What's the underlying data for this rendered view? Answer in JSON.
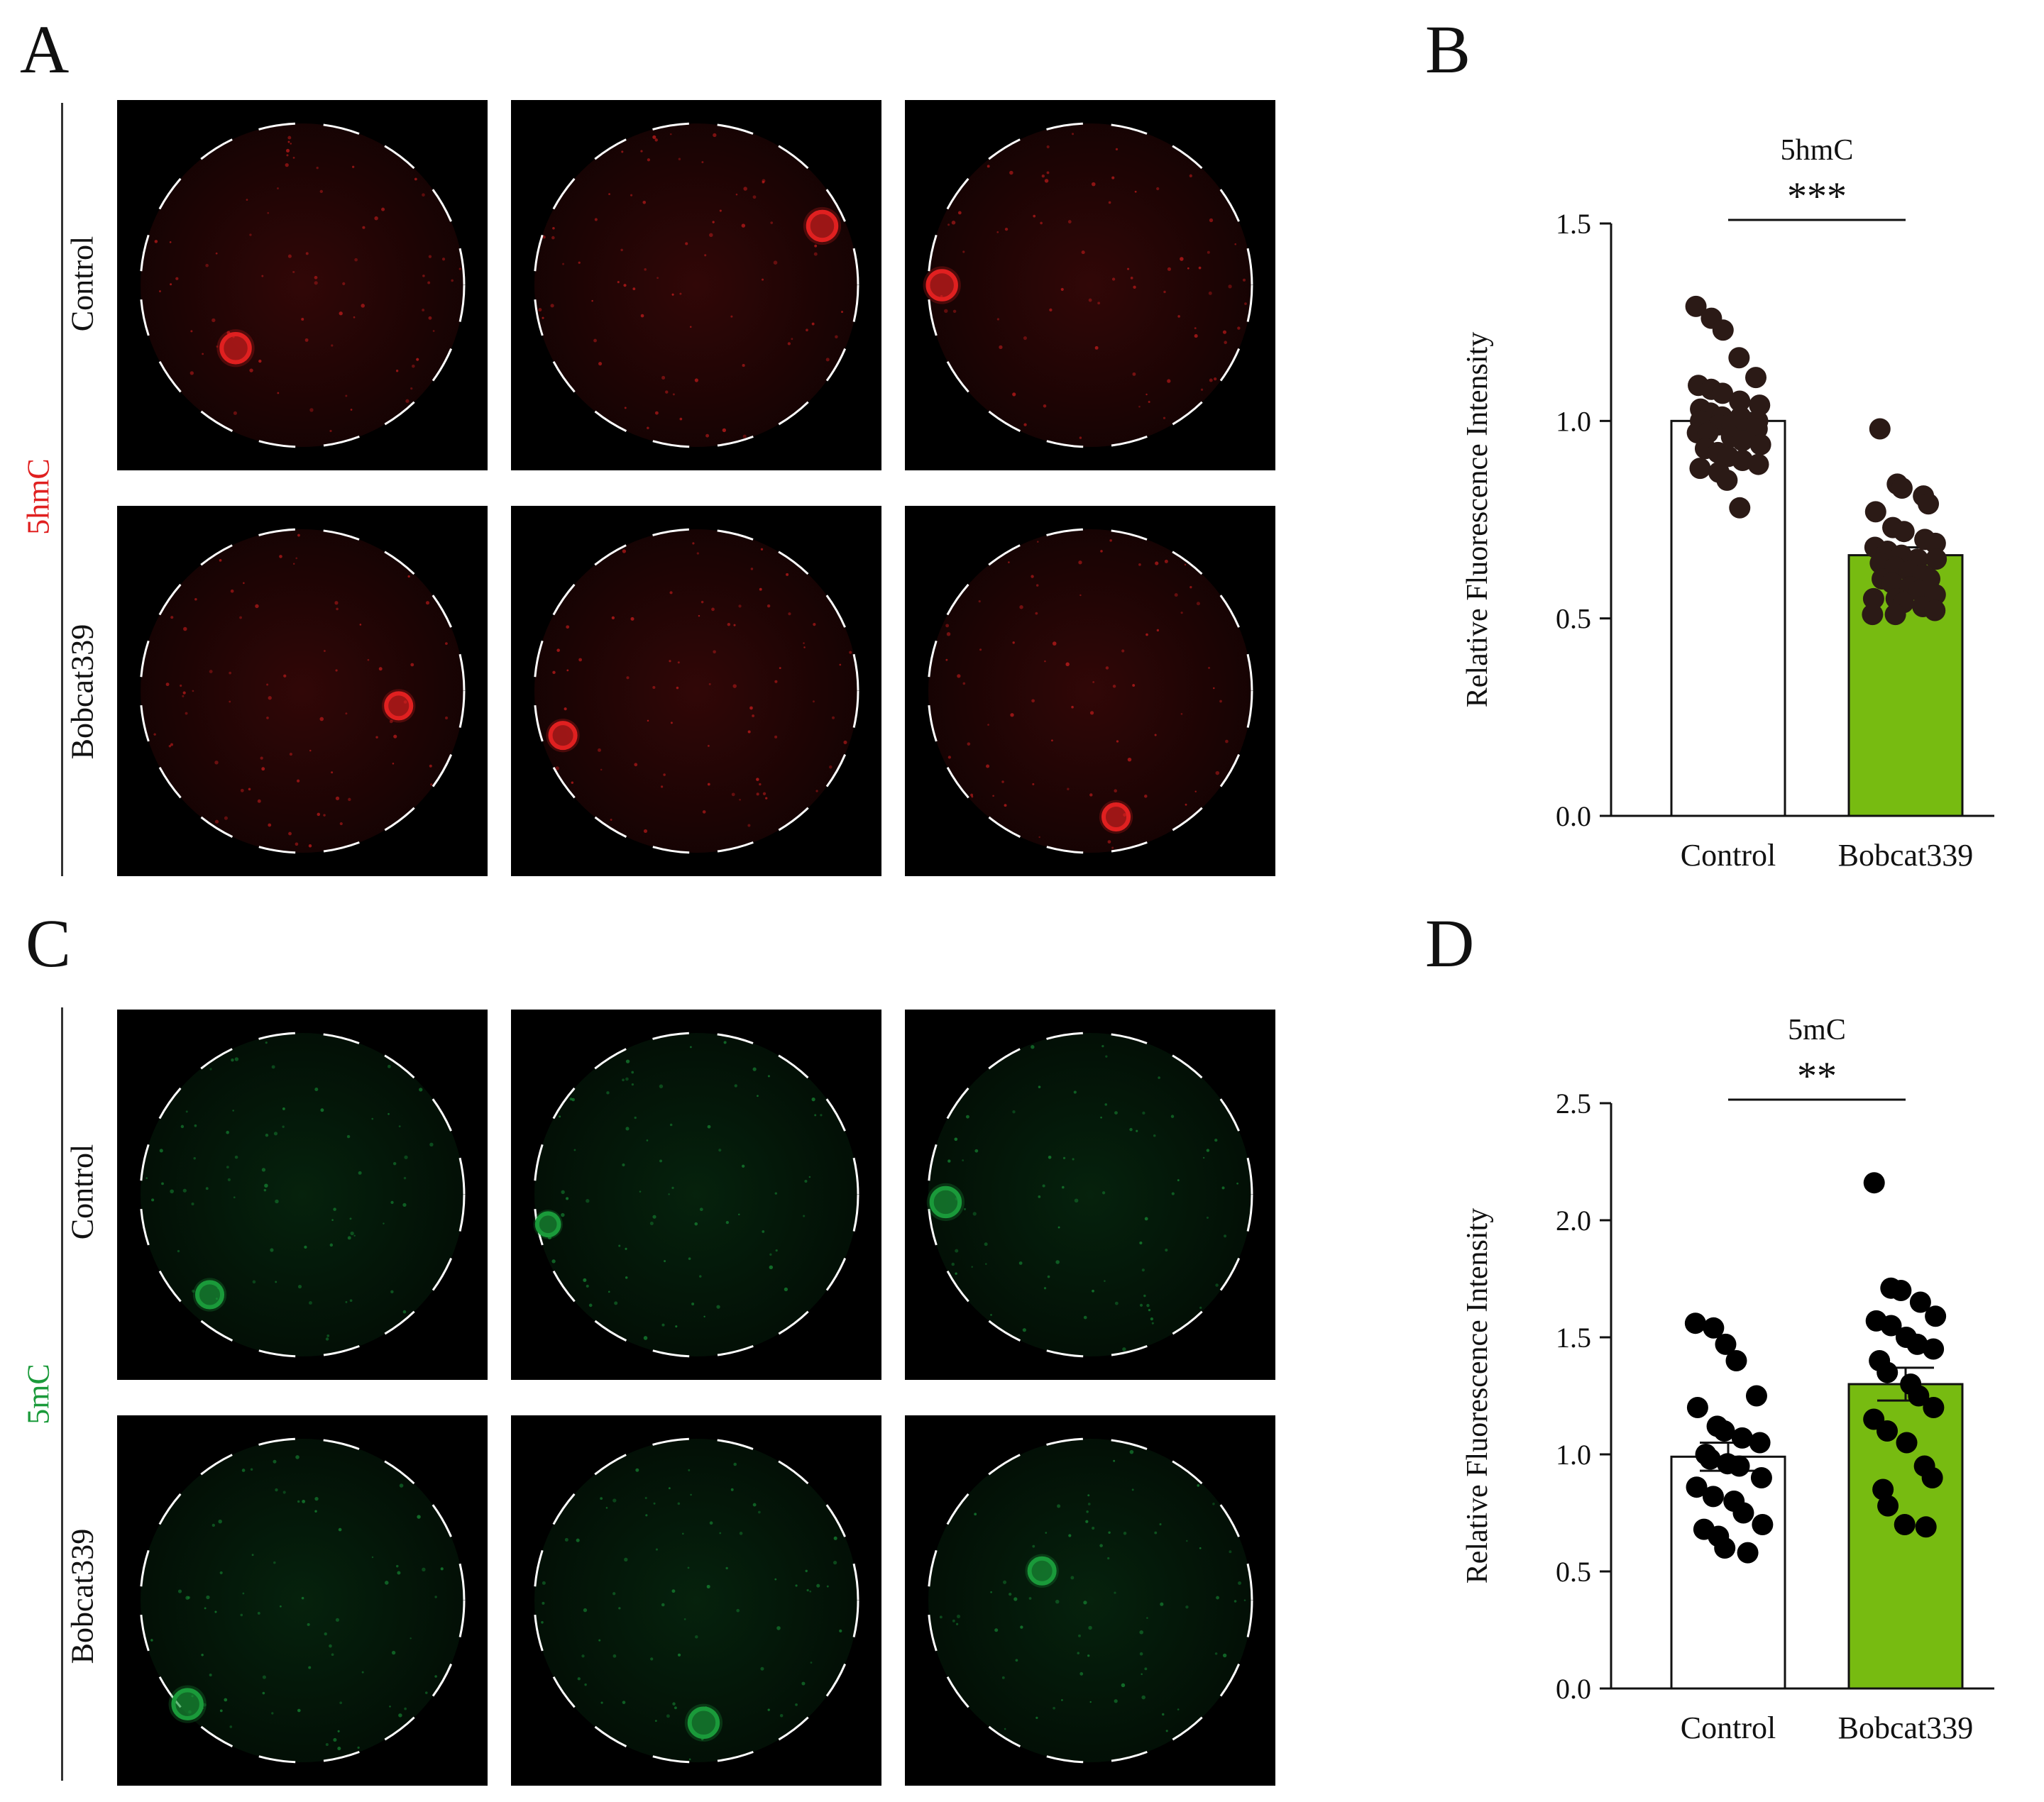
{
  "panels": {
    "A": {
      "letter": "A",
      "stain": "5hmC",
      "stain_color": "#e02020",
      "rows": [
        {
          "label": "Control",
          "images": [
            {
              "nucleus": [
                0.32,
                0.67
              ],
              "size": 0.09
            },
            {
              "nucleus": [
                0.84,
                0.34
              ],
              "size": 0.09
            },
            {
              "nucleus": [
                0.1,
                0.5
              ],
              "size": 0.09
            }
          ]
        },
        {
          "label": "Bobcat339",
          "images": [
            {
              "nucleus": [
                0.76,
                0.54
              ],
              "size": 0.08
            },
            {
              "nucleus": [
                0.14,
                0.62
              ],
              "size": 0.08
            },
            {
              "nucleus": [
                0.57,
                0.84
              ],
              "size": 0.08
            }
          ]
        }
      ]
    },
    "C": {
      "letter": "C",
      "stain": "5mC",
      "stain_color": "#1a9a3a",
      "rows": [
        {
          "label": "Control",
          "images": [
            {
              "nucleus": [
                0.25,
                0.77
              ],
              "size": 0.08
            },
            {
              "nucleus": [
                0.1,
                0.58
              ],
              "size": 0.07
            },
            {
              "nucleus": [
                0.11,
                0.52
              ],
              "size": 0.09
            }
          ]
        },
        {
          "label": "Bobcat339",
          "images": [
            {
              "nucleus": [
                0.19,
                0.78
              ],
              "size": 0.09
            },
            {
              "nucleus": [
                0.52,
                0.83
              ],
              "size": 0.09
            },
            {
              "nucleus": [
                0.37,
                0.42
              ],
              "size": 0.08
            }
          ]
        }
      ]
    },
    "B": {
      "letter": "B"
    },
    "D": {
      "letter": "D"
    }
  },
  "chart_data": [
    {
      "panel": "B",
      "type": "bar",
      "title": "5hmC",
      "significance": "***",
      "ylabel": "Relative Fluorescence Intensity",
      "xlabel": "",
      "ylim": [
        0,
        1.5
      ],
      "yticks": [
        0.0,
        0.5,
        1.0,
        1.5
      ],
      "ytick_labels": [
        "0.0",
        "0.5",
        "1.0",
        "1.5"
      ],
      "categories": [
        "Control",
        "Bobcat339"
      ],
      "values": [
        1.0,
        0.66
      ],
      "sem": [
        0.02,
        0.02
      ],
      "bar_colors": [
        "#ffffff",
        "#77bb11"
      ],
      "points": [
        [
          1.29,
          1.26,
          1.23,
          1.16,
          1.11,
          1.09,
          1.08,
          1.07,
          1.05,
          1.04,
          1.03,
          1.02,
          1.01,
          1.01,
          1.0,
          1.0,
          0.99,
          0.99,
          0.98,
          0.98,
          0.97,
          0.97,
          0.96,
          0.95,
          0.94,
          0.93,
          0.92,
          0.91,
          0.9,
          0.89,
          0.88,
          0.87,
          0.85,
          0.78
        ],
        [
          0.98,
          0.84,
          0.83,
          0.81,
          0.79,
          0.77,
          0.73,
          0.72,
          0.7,
          0.69,
          0.68,
          0.67,
          0.66,
          0.65,
          0.65,
          0.64,
          0.63,
          0.62,
          0.61,
          0.6,
          0.6,
          0.59,
          0.58,
          0.57,
          0.56,
          0.55,
          0.55,
          0.54,
          0.53,
          0.52,
          0.51,
          0.51
        ]
      ],
      "marker_color": "#2b1a16"
    },
    {
      "panel": "D",
      "type": "bar",
      "title": "5mC",
      "significance": "**",
      "ylabel": "Relative Fluorescence Intensity",
      "xlabel": "",
      "ylim": [
        0,
        2.5
      ],
      "yticks": [
        0.0,
        0.5,
        1.0,
        1.5,
        2.0,
        2.5
      ],
      "ytick_labels": [
        "0.0",
        "0.5",
        "1.0",
        "1.5",
        "2.0",
        "2.5"
      ],
      "categories": [
        "Control",
        "Bobcat339"
      ],
      "values": [
        0.99,
        1.3
      ],
      "sem": [
        0.06,
        0.07
      ],
      "bar_colors": [
        "#ffffff",
        "#77bb11"
      ],
      "points": [
        [
          1.56,
          1.54,
          1.47,
          1.4,
          1.25,
          1.2,
          1.12,
          1.1,
          1.07,
          1.05,
          1.0,
          0.98,
          0.96,
          0.95,
          0.9,
          0.86,
          0.82,
          0.8,
          0.75,
          0.7,
          0.68,
          0.65,
          0.6,
          0.58
        ],
        [
          2.16,
          1.71,
          1.7,
          1.65,
          1.59,
          1.57,
          1.55,
          1.5,
          1.47,
          1.45,
          1.4,
          1.35,
          1.3,
          1.25,
          1.2,
          1.15,
          1.1,
          1.05,
          0.95,
          0.9,
          0.85,
          0.78,
          0.7,
          0.69
        ]
      ],
      "marker_color": "#000000"
    }
  ]
}
